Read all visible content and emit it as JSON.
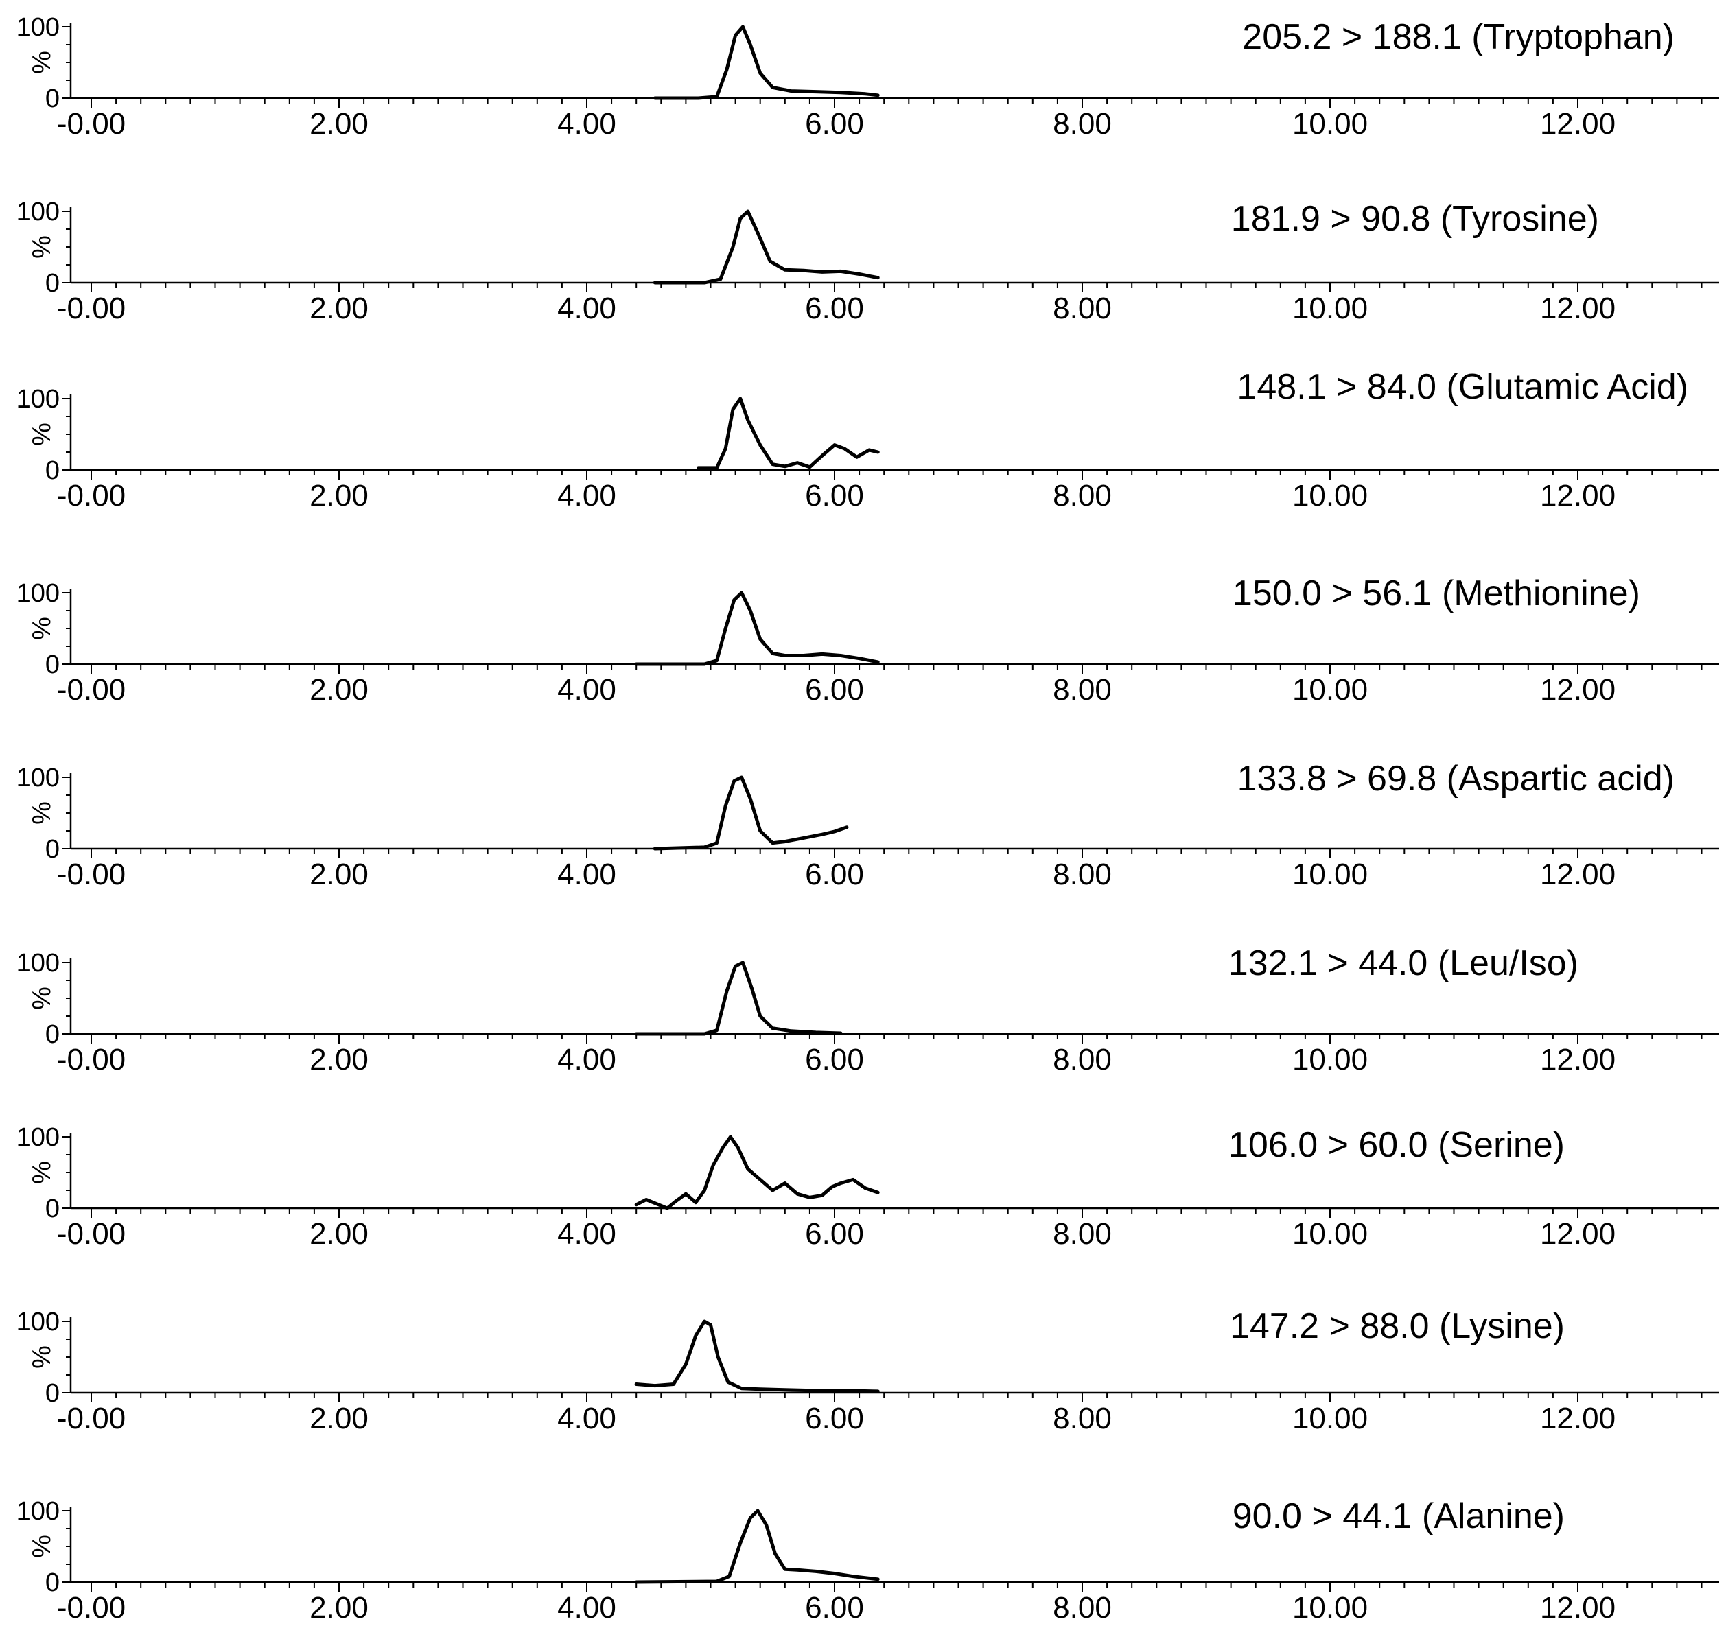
{
  "chart_data": {
    "type": "line",
    "xlim": [
      -0.25,
      13.25
    ],
    "ylim": [
      0,
      100
    ],
    "x_ticks": [
      -0.0,
      2.0,
      4.0,
      6.0,
      8.0,
      10.0,
      12.0
    ],
    "x_tick_labels": [
      "-0.00",
      "2.00",
      "4.00",
      "6.00",
      "8.00",
      "10.00",
      "12.00"
    ],
    "y_tick_labels": [
      "0",
      "100"
    ],
    "ylabel": "%",
    "series": [
      {
        "name": "205.2 > 188.1 (Tryptophan)",
        "x": [
          4.55,
          4.9,
          5.05,
          5.13,
          5.2,
          5.26,
          5.32,
          5.4,
          5.5,
          5.65,
          5.85,
          6.05,
          6.25,
          6.35
        ],
        "y": [
          0,
          0,
          2,
          40,
          88,
          100,
          75,
          35,
          15,
          10,
          9,
          8,
          6,
          4
        ]
      },
      {
        "name": "181.9 > 90.8 (Tyrosine)",
        "x": [
          4.55,
          4.95,
          5.08,
          5.18,
          5.24,
          5.3,
          5.38,
          5.48,
          5.6,
          5.75,
          5.9,
          6.05,
          6.2,
          6.35
        ],
        "y": [
          0,
          0,
          5,
          50,
          90,
          100,
          70,
          30,
          18,
          17,
          15,
          16,
          12,
          7
        ]
      },
      {
        "name": "148.1 > 84.0 (Glutamic Acid)",
        "x": [
          4.9,
          5.05,
          5.12,
          5.18,
          5.24,
          5.3,
          5.4,
          5.5,
          5.6,
          5.7,
          5.8,
          5.9,
          6.0,
          6.08,
          6.18,
          6.28,
          6.35
        ],
        "y": [
          3,
          3,
          30,
          85,
          100,
          70,
          35,
          8,
          5,
          10,
          4,
          20,
          35,
          30,
          18,
          28,
          25
        ]
      },
      {
        "name": "150.0 > 56.1 (Methionine)",
        "x": [
          4.4,
          4.95,
          5.05,
          5.12,
          5.19,
          5.25,
          5.32,
          5.4,
          5.5,
          5.6,
          5.75,
          5.9,
          6.05,
          6.2,
          6.35
        ],
        "y": [
          0,
          0,
          5,
          50,
          90,
          100,
          75,
          35,
          15,
          12,
          12,
          14,
          12,
          8,
          3
        ]
      },
      {
        "name": "133.8 > 69.8 (Aspartic acid)",
        "x": [
          4.55,
          4.95,
          5.05,
          5.12,
          5.19,
          5.25,
          5.32,
          5.4,
          5.5,
          5.6,
          5.75,
          5.9,
          6.0,
          6.1
        ],
        "y": [
          0,
          2,
          8,
          60,
          95,
          100,
          70,
          25,
          8,
          10,
          15,
          20,
          24,
          30
        ]
      },
      {
        "name": "132.1 > 44.0 (Leu/Iso)",
        "x": [
          4.4,
          4.95,
          5.05,
          5.13,
          5.2,
          5.26,
          5.33,
          5.4,
          5.5,
          5.65,
          5.85,
          6.05
        ],
        "y": [
          0,
          0,
          5,
          60,
          95,
          100,
          65,
          25,
          8,
          4,
          2,
          1
        ]
      },
      {
        "name": "106.0 > 60.0 (Serine)",
        "x": [
          4.4,
          4.48,
          4.58,
          4.65,
          4.72,
          4.8,
          4.88,
          4.95,
          5.02,
          5.1,
          5.16,
          5.22,
          5.3,
          5.4,
          5.5,
          5.6,
          5.7,
          5.8,
          5.9,
          5.98,
          6.05,
          6.15,
          6.25,
          6.35
        ],
        "y": [
          5,
          12,
          5,
          0,
          10,
          20,
          8,
          25,
          60,
          85,
          100,
          85,
          55,
          40,
          25,
          35,
          20,
          15,
          18,
          30,
          35,
          40,
          28,
          22
        ]
      },
      {
        "name": "147.2 > 88.0 (Lysine)",
        "x": [
          4.4,
          4.55,
          4.7,
          4.8,
          4.88,
          4.95,
          5.0,
          5.06,
          5.14,
          5.25,
          5.4,
          5.6,
          5.85,
          6.1,
          6.35
        ],
        "y": [
          12,
          10,
          12,
          40,
          80,
          100,
          95,
          50,
          15,
          6,
          5,
          4,
          3,
          3,
          2
        ]
      },
      {
        "name": "90.0 > 44.1 (Alanine)",
        "x": [
          4.4,
          5.05,
          5.15,
          5.24,
          5.32,
          5.38,
          5.45,
          5.52,
          5.6,
          5.7,
          5.85,
          6.0,
          6.15,
          6.35
        ],
        "y": [
          0,
          1,
          8,
          55,
          90,
          100,
          80,
          40,
          18,
          17,
          15,
          12,
          8,
          4
        ]
      }
    ],
    "minor_x_ticks_per_major": 5
  }
}
